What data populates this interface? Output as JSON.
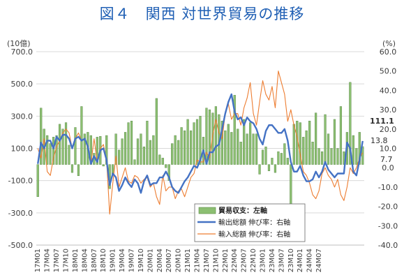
{
  "title": "図４　関西 対世界貿易の推移",
  "chart_data": {
    "type": "bar+line",
    "left_axis_unit": "(10億)",
    "right_axis_unit": "(%)",
    "left_ylim": [
      -500,
      700
    ],
    "right_ylim": [
      -40,
      60
    ],
    "left_ticks": [
      "700.0",
      "500.0",
      "300.0",
      "100.0",
      "-100.0",
      "-300.0",
      "-500.0"
    ],
    "left_tick_values": [
      700,
      500,
      300,
      100,
      -100,
      -300,
      -500
    ],
    "right_ticks": [
      "60.0",
      "50.0",
      "40.0",
      "30.0",
      "20.0",
      "10.0",
      "0.0",
      "-10.0",
      "-20.0",
      "-30.0",
      "-40.0"
    ],
    "right_tick_values": [
      60,
      50,
      40,
      30,
      20,
      10,
      0,
      -10,
      -20,
      -30,
      -40
    ],
    "x_tick_labels": [
      "17M01",
      "17M04",
      "17M07",
      "17M10",
      "18M01",
      "18M04",
      "18M07",
      "18M10",
      "19M01",
      "19M04",
      "19M07",
      "19M10",
      "20M01",
      "20M04",
      "20M07",
      "20M10",
      "21M01",
      "21M04",
      "21M07",
      "21M10",
      "22M01",
      "22M04",
      "22M07",
      "22M10",
      "23M01",
      "23M04",
      "23M07",
      "23M10",
      "24M01",
      "24M04",
      "24M07"
    ],
    "grid": true,
    "legend_position": "bottom-center",
    "series": [
      {
        "name": "貿易収支：左軸",
        "type": "bar",
        "axis": "left",
        "color": "#8cbf72",
        "values": [
          -200,
          350,
          220,
          180,
          130,
          170,
          180,
          250,
          220,
          260,
          120,
          -50,
          230,
          -70,
          360,
          190,
          200,
          180,
          70,
          170,
          175,
          -10,
          180,
          -150,
          -60,
          190,
          90,
          160,
          200,
          260,
          270,
          30,
          160,
          190,
          110,
          270,
          150,
          180,
          410,
          60,
          40,
          -20,
          -100,
          130,
          180,
          150,
          230,
          210,
          280,
          210,
          260,
          280,
          300,
          170,
          350,
          340,
          320,
          360,
          310,
          270,
          210,
          250,
          200,
          430,
          220,
          140,
          280,
          190,
          260,
          190,
          190,
          -60,
          90,
          110,
          -40,
          40,
          -50,
          80,
          70,
          130,
          40,
          -280,
          250,
          270,
          260,
          170,
          210,
          270,
          140,
          320,
          100,
          80,
          310,
          190,
          100,
          280,
          100,
          360,
          80,
          200,
          510,
          180,
          100,
          200,
          111.1
        ]
      },
      {
        "name": "輸出総額 伸び率：右軸",
        "type": "line",
        "axis": "right",
        "color": "#4472c4",
        "values": [
          2,
          13,
          10,
          14,
          14,
          10,
          16,
          14,
          17,
          17,
          15,
          10,
          15,
          16,
          14,
          15,
          11,
          2,
          6,
          3,
          9,
          10,
          4,
          -9,
          -3,
          -5,
          -12,
          -9,
          -5,
          -8,
          -10,
          -6,
          -8,
          -13,
          -7,
          -4,
          -9,
          -8,
          -8,
          -5,
          -5,
          -2,
          -5,
          -10,
          -12,
          -13,
          -10,
          -7,
          -5,
          -2,
          1,
          0,
          4,
          9,
          2,
          8,
          8,
          11,
          12,
          20,
          28,
          34,
          38,
          29,
          25,
          26,
          22,
          26,
          24,
          23,
          20,
          15,
          12,
          19,
          22,
          22,
          20,
          18,
          18,
          20,
          14,
          3,
          -2,
          -2,
          1,
          -4,
          -7,
          -7,
          -6,
          -2,
          -5,
          -2,
          3,
          -1,
          -3,
          -5,
          -3,
          -3,
          -3,
          13,
          10,
          -2,
          -4,
          4,
          13.8
        ]
      },
      {
        "name": "輸入総額 伸び率：右軸",
        "type": "line",
        "axis": "right",
        "color": "#ed7d31",
        "values": [
          10,
          5,
          15,
          -2,
          -4,
          5,
          11,
          14,
          18,
          20,
          18,
          10,
          15,
          18,
          14,
          15,
          10,
          2,
          15,
          3,
          10,
          12,
          4,
          -24,
          -8,
          6,
          -10,
          -5,
          0,
          -7,
          -8,
          -4,
          -5,
          -8,
          -6,
          -5,
          -10,
          -8,
          -15,
          -19,
          -4,
          -12,
          -10,
          -10,
          -16,
          -12,
          -11,
          -15,
          -10,
          -5,
          -3,
          4,
          3,
          3,
          8,
          5,
          17,
          25,
          18,
          15,
          28,
          33,
          25,
          28,
          28,
          22,
          31,
          36,
          44,
          28,
          22,
          34,
          45,
          38,
          35,
          42,
          31,
          50,
          44,
          38,
          24,
          30,
          22,
          16,
          7,
          -2,
          -4,
          -8,
          -14,
          -16,
          -12,
          -3,
          0,
          -4,
          -6,
          -10,
          -6,
          -14,
          -17,
          -10,
          0,
          -3,
          0,
          5,
          7.7
        ]
      }
    ],
    "annotations": {
      "bar_last_label": "111.1",
      "export_last_label": "13.8",
      "import_last_label": "7.7"
    }
  }
}
